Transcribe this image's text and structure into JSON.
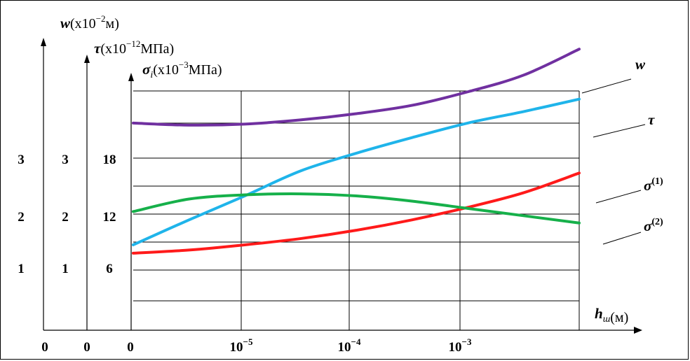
{
  "chart_data": {
    "type": "line",
    "axis_labels": {
      "w": {
        "sym": "w",
        "rest": "(x10",
        "exp": "−2",
        "unit": "м)"
      },
      "tau": {
        "sym": "τ",
        "rest": "(x10",
        "exp": "−12",
        "unit": "МПа)"
      },
      "sigma": {
        "sym": "σ",
        "sub": "i",
        "rest": "(x10",
        "exp": "−3",
        "unit": "МПа)"
      },
      "x": {
        "sym": "h",
        "sub": "ш",
        "unit": "(м)"
      }
    },
    "y_ticks": {
      "w": [
        "1",
        "2",
        "3"
      ],
      "tau": [
        "1",
        "2",
        "3"
      ],
      "sigma": [
        "6",
        "12",
        "18"
      ]
    },
    "zero_labels": [
      "0",
      "0",
      "0"
    ],
    "x_ticks": [
      {
        "base": "10",
        "exp": "−5"
      },
      {
        "base": "10",
        "exp": "−4"
      },
      {
        "base": "10",
        "exp": "−3"
      }
    ],
    "x_log_range": [
      -6,
      -2
    ],
    "sigma_range": [
      0,
      25
    ],
    "series": [
      {
        "name": "w",
        "label": {
          "sym": "w"
        },
        "color": "#7030a0",
        "x": [
          -6,
          -5.5,
          -5,
          -4.5,
          -4,
          -3.5,
          -3,
          -2.5,
          -2
        ],
        "y": [
          19.9,
          19.7,
          19.8,
          20.2,
          20.8,
          21.6,
          22.9,
          24.5,
          27.0
        ]
      },
      {
        "name": "τ",
        "label": {
          "sym": "τ"
        },
        "color": "#1fb4ea",
        "x": [
          -6,
          -5.5,
          -5,
          -4.5,
          -4,
          -3.5,
          -3,
          -2.5,
          -2
        ],
        "y": [
          8.2,
          10.6,
          12.9,
          15.3,
          17.0,
          18.5,
          19.9,
          21.0,
          22.2
        ]
      },
      {
        "name": "σ(1)",
        "label": {
          "sym": "σ",
          "sup": "(1)"
        },
        "color": "#ff1a1a",
        "x": [
          -6,
          -5.5,
          -5,
          -4.5,
          -4,
          -3.5,
          -3,
          -2.5,
          -2
        ],
        "y": [
          7.4,
          7.7,
          8.2,
          8.8,
          9.6,
          10.6,
          11.8,
          13.2,
          15.1
        ]
      },
      {
        "name": "σ(2)",
        "label": {
          "sym": "σ",
          "sup": "(2)"
        },
        "color": "#16b04a",
        "x": [
          -6,
          -5.5,
          -5,
          -4.5,
          -4,
          -3.5,
          -3,
          -2.5,
          -2
        ],
        "y": [
          11.4,
          12.6,
          13.0,
          13.1,
          12.9,
          12.4,
          11.7,
          11.0,
          10.3
        ]
      }
    ],
    "grid": true,
    "legend": "leader-line labels at right"
  }
}
